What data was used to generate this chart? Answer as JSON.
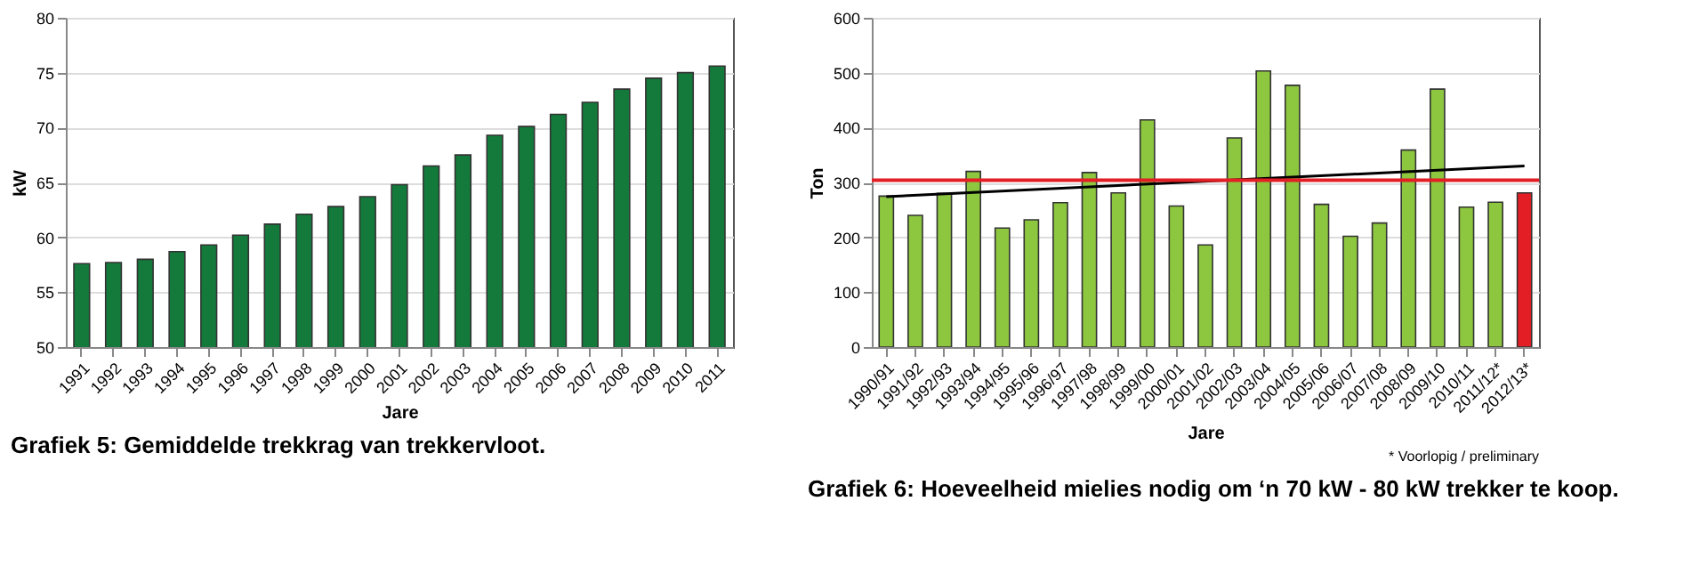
{
  "chart_data": [
    {
      "type": "bar",
      "xlabel": "Jare",
      "ylabel": "kW",
      "categories": [
        "1991",
        "1992",
        "1993",
        "1994",
        "1995",
        "1996",
        "1997",
        "1998",
        "1999",
        "2000",
        "2001",
        "2002",
        "2003",
        "2004",
        "2005",
        "2006",
        "2007",
        "2008",
        "2009",
        "2010",
        "2011"
      ],
      "series": [
        {
          "color": "#137a3b",
          "values": [
            57.6,
            57.7,
            58.0,
            58.7,
            59.3,
            60.2,
            61.2,
            62.1,
            62.8,
            63.7,
            64.8,
            66.5,
            67.5,
            69.3,
            70.1,
            71.2,
            72.3,
            73.5,
            74.5,
            75.0,
            75.6
          ]
        }
      ],
      "ylim": [
        50,
        80
      ],
      "yticks": [
        50,
        55,
        60,
        65,
        70,
        75,
        80
      ],
      "grid": "y",
      "annotations": [
        "Grafiek 5: Gemiddelde trekkrag van trekkervloot."
      ]
    },
    {
      "type": "bar",
      "xlabel": "Jare",
      "ylabel": "Ton",
      "categories": [
        "1990/91",
        "1991/92",
        "1992/93",
        "1993/94",
        "1994/95",
        "1995/96",
        "1996/97",
        "1997/98",
        "1998/99",
        "1999/00",
        "2000/01",
        "2001/02",
        "2002/03",
        "2003/04",
        "2004/05",
        "2005/06",
        "2006/07",
        "2007/08",
        "2008/09",
        "2009/10",
        "2010/11",
        "2011/12*",
        "2012/13*"
      ],
      "series": [
        {
          "colors": [
            "#8dc63f",
            "#8dc63f",
            "#8dc63f",
            "#8dc63f",
            "#8dc63f",
            "#8dc63f",
            "#8dc63f",
            "#8dc63f",
            "#8dc63f",
            "#8dc63f",
            "#8dc63f",
            "#8dc63f",
            "#8dc63f",
            "#8dc63f",
            "#8dc63f",
            "#8dc63f",
            "#8dc63f",
            "#8dc63f",
            "#8dc63f",
            "#8dc63f",
            "#8dc63f",
            "#8dc63f",
            "#e31e24"
          ],
          "values": [
            275,
            240,
            280,
            320,
            217,
            232,
            263,
            318,
            281,
            414,
            257,
            186,
            381,
            503,
            477,
            260,
            202,
            226,
            359,
            470,
            255,
            264,
            281
          ]
        },
        {
          "type": "line",
          "color": "#000000",
          "x": [
            "1990/91",
            "2012/13*"
          ],
          "values": [
            274,
            330
          ]
        }
      ],
      "ref_lines": [
        {
          "axis": "y",
          "value": 304,
          "color": "#e31e24"
        }
      ],
      "ylim": [
        0,
        600
      ],
      "yticks": [
        0,
        100,
        200,
        300,
        400,
        500,
        600
      ],
      "grid": "y",
      "annotations": [
        "* Voorlopig / preliminary",
        "Grafiek 6: Hoeveelheid mielies nodig om ‘n 70 kW - 80 kW trekker te koop."
      ]
    }
  ]
}
